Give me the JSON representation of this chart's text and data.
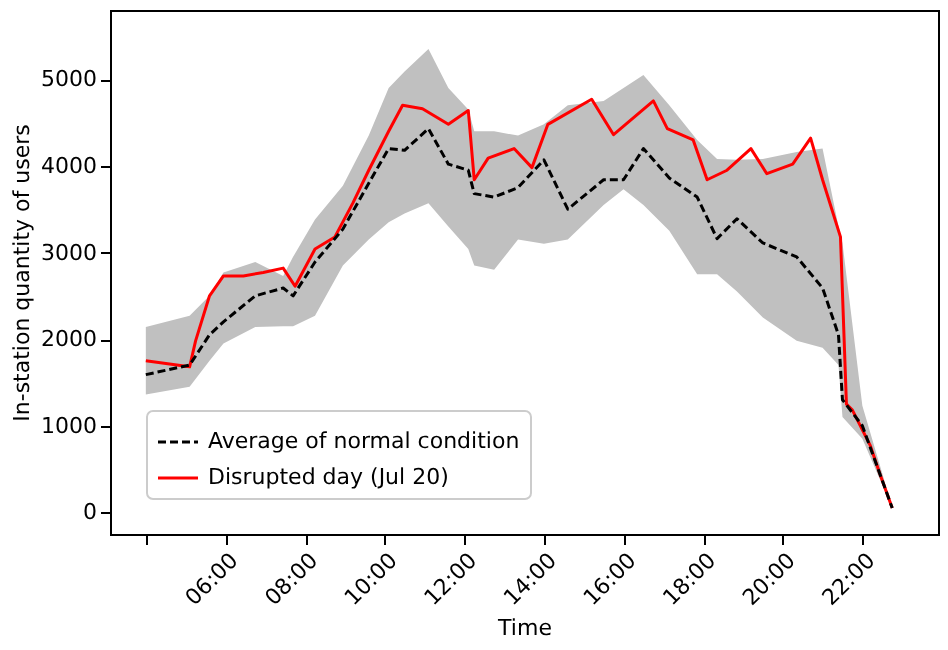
{
  "chart_data": {
    "type": "line",
    "xlabel": "Time",
    "ylabel": "In-station quantity of users",
    "xlim": [
      3.1,
      23.9
    ],
    "ylim": [
      -250,
      5800
    ],
    "xticks": [
      {
        "value": 4,
        "label": null
      },
      {
        "value": 6,
        "label": "06:00"
      },
      {
        "value": 8,
        "label": "08:00"
      },
      {
        "value": 10,
        "label": "10:00"
      },
      {
        "value": 12,
        "label": "12:00"
      },
      {
        "value": 14,
        "label": "14:00"
      },
      {
        "value": 16,
        "label": "16:00"
      },
      {
        "value": 18,
        "label": "18:00"
      },
      {
        "value": 20,
        "label": "20:00"
      },
      {
        "value": 22,
        "label": "22:00"
      }
    ],
    "yticks": [
      0,
      1000,
      2000,
      3000,
      4000,
      5000
    ],
    "grid": false,
    "legend": "bottom left",
    "series": [
      {
        "name": "Average of normal condition",
        "color": "#000000",
        "line_style": "dashed",
        "x": [
          4,
          5.1,
          5.6,
          5.95,
          6.75,
          7.45,
          7.7,
          8.25,
          8.95,
          9.6,
          10.1,
          10.5,
          11.1,
          11.6,
          12.1,
          12.25,
          12.75,
          13.35,
          14,
          14.6,
          15.5,
          16,
          16.5,
          17.15,
          17.85,
          18.35,
          18.85,
          19.5,
          20.35,
          21,
          21.4,
          21.5,
          22,
          22.75
        ],
        "values": [
          1590,
          1700,
          2050,
          2200,
          2500,
          2590,
          2500,
          2890,
          3270,
          3800,
          4200,
          4180,
          4430,
          4020,
          3950,
          3680,
          3640,
          3750,
          4070,
          3500,
          3840,
          3840,
          4200,
          3860,
          3640,
          3160,
          3390,
          3110,
          2950,
          2590,
          2050,
          1300,
          1000,
          50
        ],
        "lower": [
          1360,
          1450,
          1750,
          1950,
          2140,
          2150,
          2150,
          2270,
          2850,
          3150,
          3350,
          3450,
          3570,
          3300,
          3040,
          2850,
          2800,
          3150,
          3100,
          3150,
          3550,
          3730,
          3550,
          3250,
          2750,
          2750,
          2550,
          2250,
          1980,
          1900,
          1700,
          1100,
          850,
          50
        ],
        "upper": [
          2140,
          2270,
          2500,
          2770,
          2890,
          2730,
          2950,
          3380,
          3770,
          4350,
          4900,
          5090,
          5350,
          4900,
          4650,
          4400,
          4400,
          4350,
          4480,
          4700,
          4750,
          4900,
          5050,
          4700,
          4300,
          4080,
          4070,
          4080,
          4160,
          4200,
          3300,
          3110,
          1230,
          60
        ]
      },
      {
        "name": "Disrupted day (Jul 20)",
        "color": "#ff0000",
        "line_style": "solid",
        "x": [
          4,
          5.1,
          5.25,
          5.6,
          5.95,
          6.45,
          6.95,
          7.45,
          7.75,
          8.25,
          8.75,
          9.2,
          9.6,
          10.1,
          10.45,
          10.95,
          11.6,
          12.1,
          12.25,
          12.6,
          13.25,
          13.7,
          14.1,
          15.2,
          15.75,
          16.75,
          17.1,
          17.75,
          18.1,
          18.6,
          19.2,
          19.6,
          20.25,
          20.7,
          21.0,
          21.45,
          21.6,
          21.75,
          22.2,
          22.45,
          22.75
        ],
        "values": [
          1750,
          1680,
          1980,
          2500,
          2730,
          2730,
          2770,
          2820,
          2610,
          3040,
          3180,
          3570,
          3950,
          4400,
          4700,
          4660,
          4480,
          4640,
          3840,
          4090,
          4200,
          3980,
          4480,
          4770,
          4360,
          4750,
          4430,
          4300,
          3840,
          3950,
          4200,
          3910,
          4020,
          4320,
          3840,
          3180,
          1250,
          1180,
          770,
          430,
          50
        ]
      }
    ]
  }
}
